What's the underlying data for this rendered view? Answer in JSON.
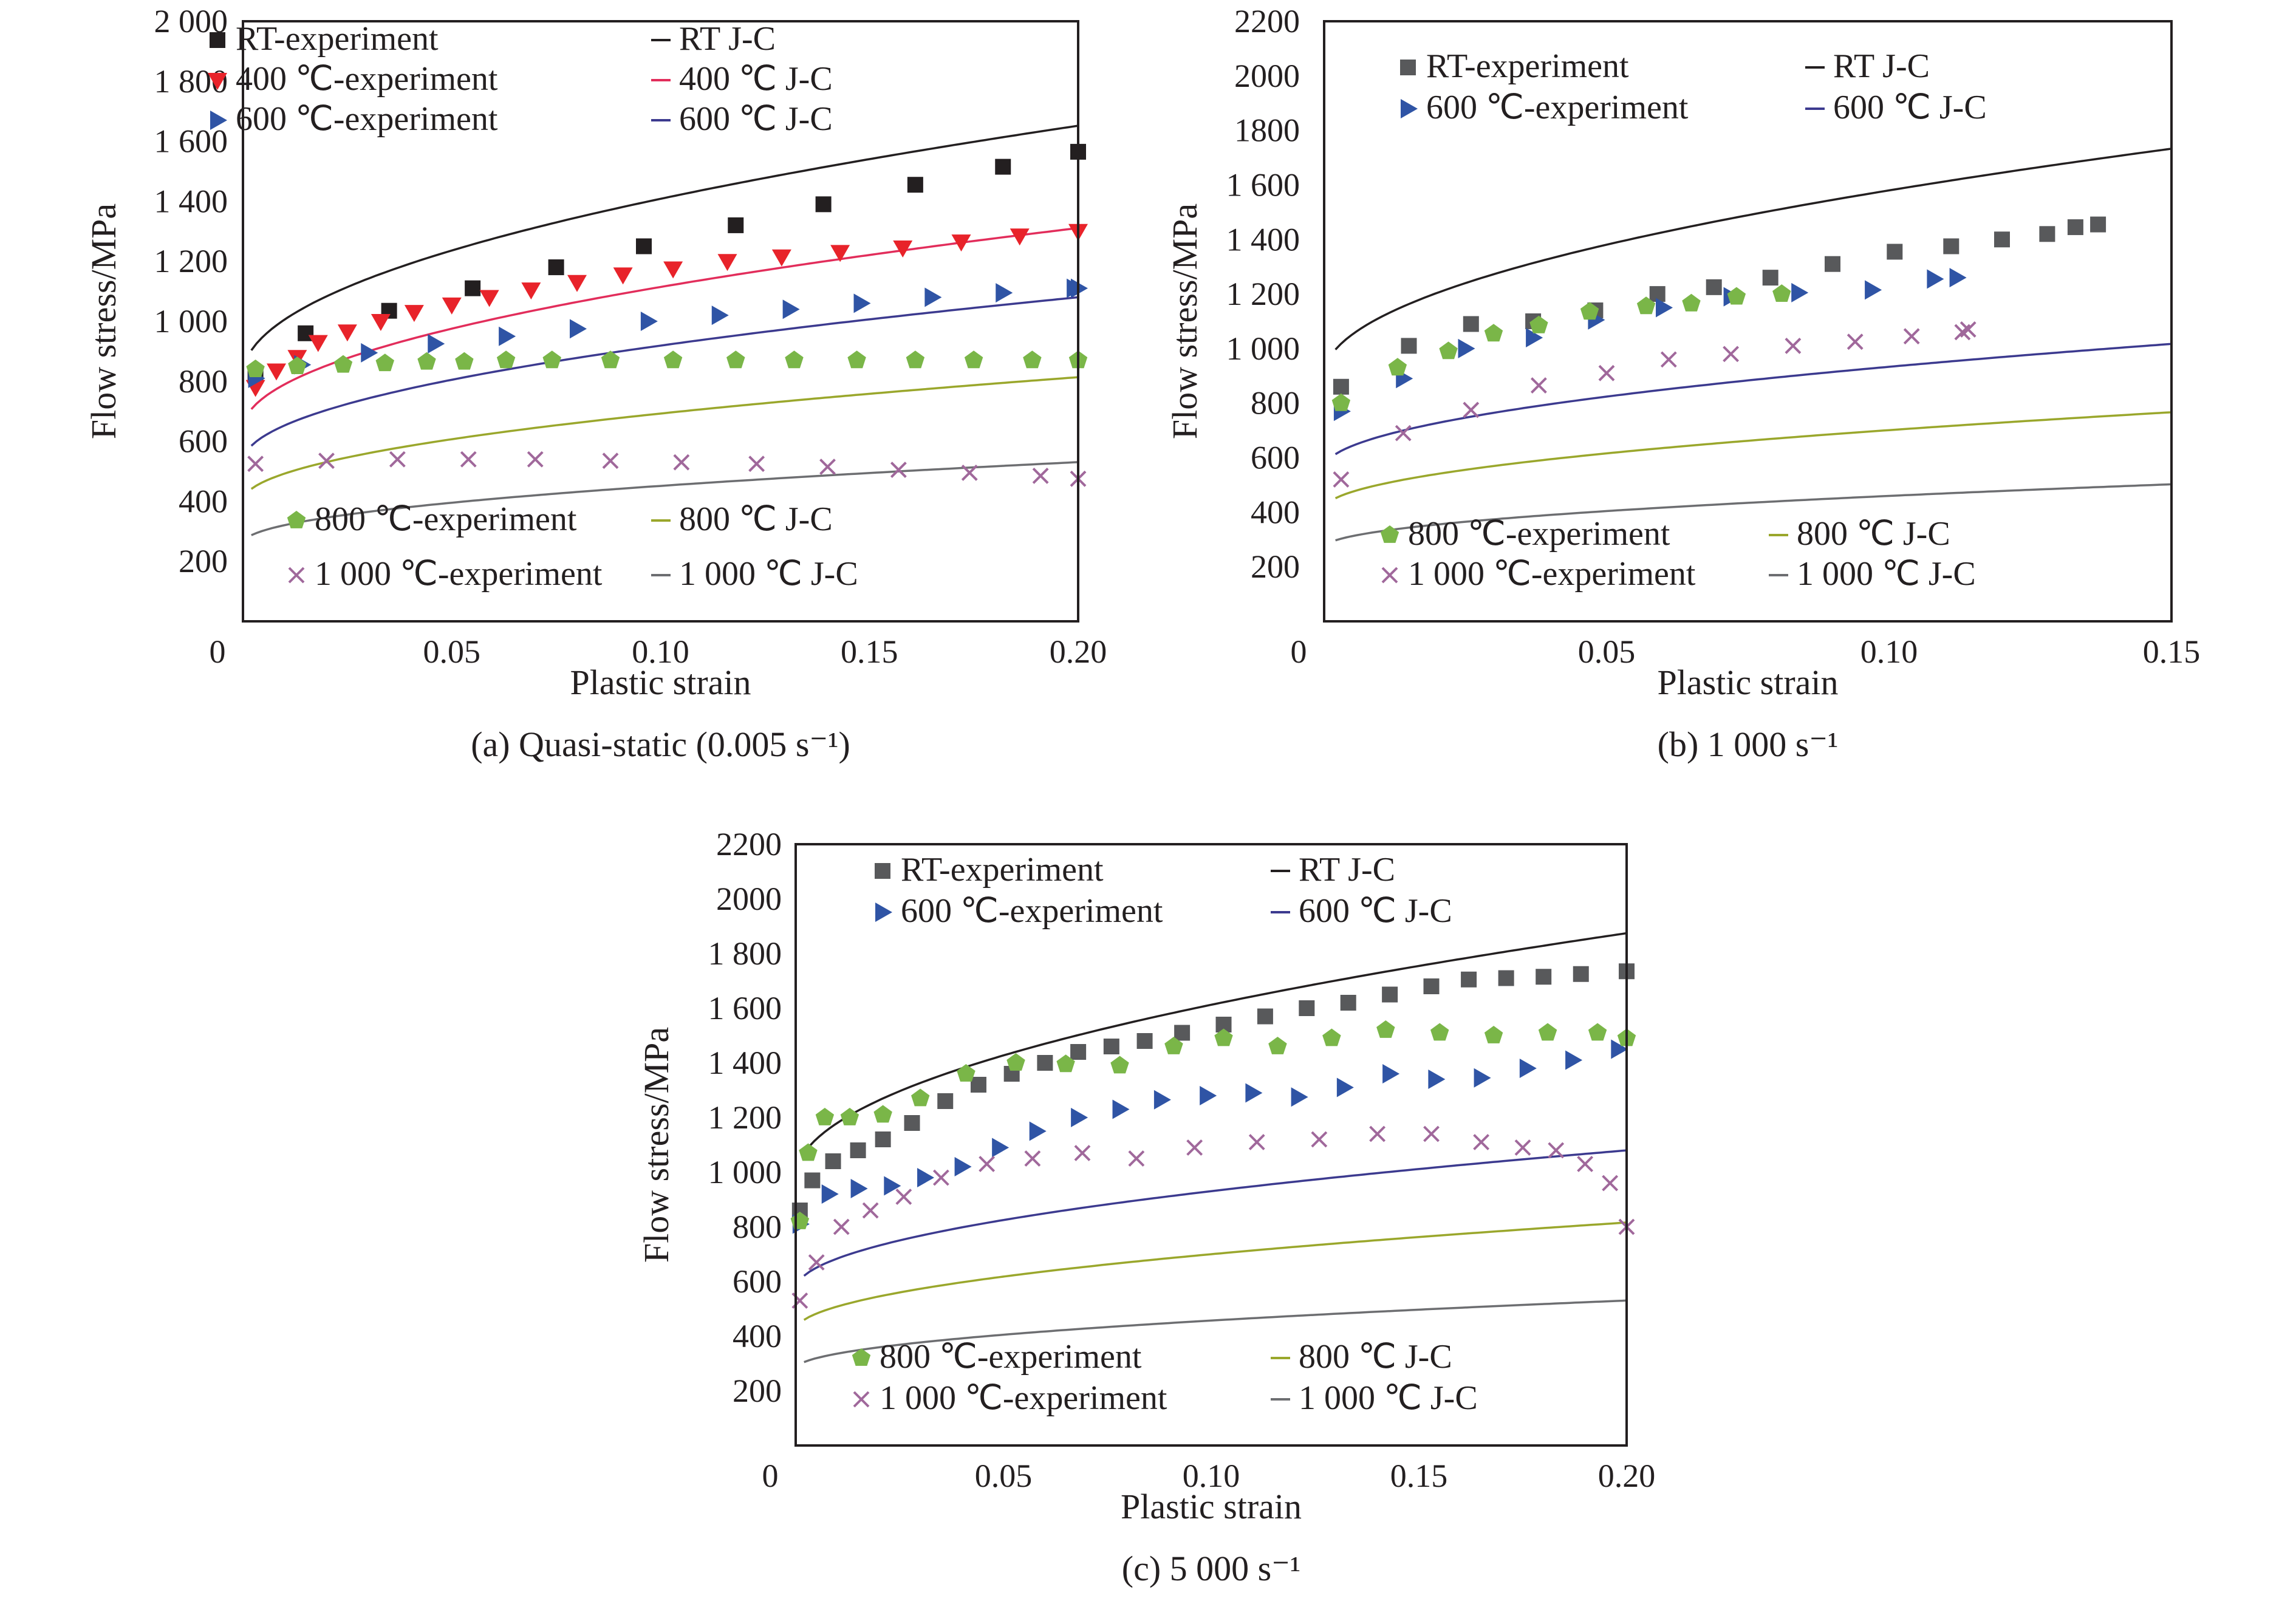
{
  "colors": {
    "rt": "#231f20",
    "c400": "#e8232a",
    "c600": "#2f54a5",
    "c800": "#7ab648",
    "c1000": "#a0689b",
    "rt_marker_b": "#58595b",
    "jc400": "#e22d5b",
    "jc600": "#3c3a8f",
    "jc800": "#9aa72c",
    "jc1000": "#6d6e71"
  },
  "chart_data": [
    {
      "type": "scatter",
      "caption": "(a) Quasi-static (0.005 s⁻¹)",
      "xlabel": "Plastic strain",
      "ylabel": "Flow stress/MPa",
      "xlim": [
        0,
        0.2
      ],
      "ylim": [
        0,
        2000
      ],
      "x_ticks": [
        "0",
        "0.05",
        "0.10",
        "0.15",
        "0.20"
      ],
      "y_ticks": [
        "2 000",
        "1 800",
        "1 600",
        "1 400",
        "1 200",
        "1 000",
        "800",
        "600",
        "400",
        "200"
      ],
      "legend_top": [
        {
          "label": "RT-experiment",
          "key": "rt_exp"
        },
        {
          "label": "RT J-C",
          "key": "rt_jc"
        },
        {
          "label": "400 ℃-experiment",
          "key": "e400"
        },
        {
          "label": "400 ℃ J-C",
          "key": "jc400"
        },
        {
          "label": "600 ℃-experiment",
          "key": "e600"
        },
        {
          "label": "600 ℃ J-C",
          "key": "jc600"
        }
      ],
      "legend_bottom": [
        {
          "label": "800 ℃-experiment",
          "key": "e800"
        },
        {
          "label": "800 ℃ J-C",
          "key": "jc800"
        },
        {
          "label": "1 000 ℃-experiment",
          "key": "e1000"
        },
        {
          "label": "1 000 ℃ J-C",
          "key": "jc1000"
        }
      ],
      "series": [
        {
          "key": "rt_exp",
          "marker": "square",
          "color": "#231f20",
          "x": [
            0.003,
            0.015,
            0.035,
            0.055,
            0.075,
            0.096,
            0.118,
            0.139,
            0.161,
            0.182,
            0.2
          ],
          "y": [
            820,
            960,
            1035,
            1110,
            1180,
            1250,
            1320,
            1390,
            1455,
            1515,
            1565
          ]
        },
        {
          "key": "e400",
          "marker": "triangle-down",
          "color": "#e8232a",
          "x": [
            0.003,
            0.008,
            0.013,
            0.018,
            0.025,
            0.033,
            0.041,
            0.05,
            0.059,
            0.069,
            0.08,
            0.091,
            0.103,
            0.116,
            0.129,
            0.143,
            0.158,
            0.172,
            0.186,
            0.2
          ],
          "y": [
            780,
            835,
            880,
            930,
            965,
            1000,
            1030,
            1055,
            1080,
            1105,
            1130,
            1155,
            1175,
            1200,
            1215,
            1230,
            1245,
            1265,
            1285,
            1300
          ]
        },
        {
          "key": "e600",
          "marker": "triangle-right",
          "color": "#2f54a5",
          "x": [
            0.003,
            0.014,
            0.03,
            0.046,
            0.063,
            0.08,
            0.097,
            0.114,
            0.131,
            0.148,
            0.165,
            0.182,
            0.199,
            0.2
          ],
          "y": [
            810,
            855,
            895,
            925,
            950,
            975,
            1000,
            1020,
            1040,
            1060,
            1080,
            1095,
            1110,
            1110
          ]
        },
        {
          "key": "e800",
          "marker": "pentagon",
          "color": "#7ab648",
          "x": [
            0.003,
            0.013,
            0.024,
            0.034,
            0.044,
            0.053,
            0.063,
            0.074,
            0.088,
            0.103,
            0.118,
            0.132,
            0.147,
            0.161,
            0.175,
            0.189,
            0.2
          ],
          "y": [
            840,
            850,
            855,
            860,
            865,
            865,
            870,
            870,
            870,
            870,
            870,
            870,
            870,
            870,
            870,
            870,
            870
          ]
        },
        {
          "key": "e1000",
          "marker": "x",
          "color": "#a0689b",
          "x": [
            0.003,
            0.02,
            0.037,
            0.054,
            0.07,
            0.088,
            0.105,
            0.123,
            0.14,
            0.157,
            0.174,
            0.191,
            0.2
          ],
          "y": [
            525,
            535,
            540,
            540,
            540,
            535,
            530,
            525,
            515,
            505,
            495,
            485,
            475
          ]
        },
        {
          "key": "rt_jc",
          "type": "jc",
          "A": 820,
          "B": 1860,
          "n": 0.5,
          "color": "#231f20"
        },
        {
          "key": "jc400",
          "type": "jc",
          "A": 640,
          "B": 1500,
          "n": 0.5,
          "color": "#e22d5b"
        },
        {
          "key": "jc600",
          "type": "jc",
          "A": 530,
          "B": 1230,
          "n": 0.5,
          "color": "#3c3a8f"
        },
        {
          "key": "jc800",
          "type": "jc",
          "A": 400,
          "B": 925,
          "n": 0.5,
          "color": "#9aa72c"
        },
        {
          "key": "jc1000",
          "type": "jc",
          "A": 260,
          "B": 605,
          "n": 0.5,
          "color": "#6d6e71"
        }
      ]
    },
    {
      "type": "scatter",
      "caption": "(b) 1 000 s⁻¹",
      "xlabel": "Plastic strain",
      "ylabel": "Flow stress/MPa",
      "xlim": [
        0,
        0.15
      ],
      "ylim": [
        0,
        2200
      ],
      "x_ticks": [
        "0",
        "0.05",
        "0.10",
        "0.15"
      ],
      "y_ticks": [
        "2200",
        "2000",
        "1800",
        "1 600",
        "1 400",
        "1 200",
        "1 000",
        "800",
        "600",
        "400",
        "200"
      ],
      "legend_top": [
        {
          "label": "RT-experiment",
          "key": "rt_exp"
        },
        {
          "label": "RT J-C",
          "key": "rt_jc"
        },
        {
          "label": "600 ℃-experiment",
          "key": "e600"
        },
        {
          "label": "600 ℃ J-C",
          "key": "jc600"
        }
      ],
      "legend_bottom": [
        {
          "label": "800 ℃-experiment",
          "key": "e800"
        },
        {
          "label": "800 ℃ J-C",
          "key": "jc800"
        },
        {
          "label": "1 000 ℃-experiment",
          "key": "e1000"
        },
        {
          "label": "1 000 ℃ J-C",
          "key": "jc1000"
        }
      ],
      "series": [
        {
          "key": "rt_exp",
          "marker": "square",
          "color": "#58595b",
          "x": [
            0.003,
            0.015,
            0.026,
            0.037,
            0.048,
            0.059,
            0.069,
            0.079,
            0.09,
            0.101,
            0.111,
            0.12,
            0.128,
            0.133,
            0.137
          ],
          "y": [
            860,
            1010,
            1090,
            1100,
            1140,
            1200,
            1225,
            1260,
            1310,
            1355,
            1375,
            1400,
            1420,
            1445,
            1455
          ]
        },
        {
          "key": "e600",
          "marker": "triangle-right",
          "color": "#2f54a5",
          "x": [
            0.003,
            0.014,
            0.025,
            0.037,
            0.048,
            0.06,
            0.072,
            0.084,
            0.097,
            0.108,
            0.112
          ],
          "y": [
            770,
            890,
            1000,
            1040,
            1105,
            1150,
            1190,
            1205,
            1215,
            1255,
            1260
          ]
        },
        {
          "key": "e800",
          "marker": "pentagon",
          "color": "#7ab648",
          "x": [
            0.003,
            0.013,
            0.022,
            0.03,
            0.038,
            0.047,
            0.057,
            0.065,
            0.073,
            0.081
          ],
          "y": [
            800,
            930,
            990,
            1055,
            1085,
            1135,
            1155,
            1165,
            1190,
            1200
          ]
        },
        {
          "key": "e1000",
          "marker": "x",
          "color": "#a0689b",
          "x": [
            0.003,
            0.014,
            0.026,
            0.038,
            0.05,
            0.061,
            0.072,
            0.083,
            0.094,
            0.104,
            0.113,
            0.114
          ],
          "y": [
            520,
            690,
            775,
            865,
            910,
            960,
            980,
            1010,
            1025,
            1045,
            1060,
            1070
          ]
        },
        {
          "key": "rt_jc",
          "type": "jc",
          "A": 900,
          "B": 2150,
          "n": 0.5,
          "color": "#231f20"
        },
        {
          "key": "jc600",
          "type": "jc",
          "A": 560,
          "B": 1180,
          "n": 0.5,
          "color": "#3c3a8f"
        },
        {
          "key": "jc800",
          "type": "jc",
          "A": 410,
          "B": 920,
          "n": 0.5,
          "color": "#9aa72c"
        },
        {
          "key": "jc1000",
          "type": "jc",
          "A": 270,
          "B": 600,
          "n": 0.5,
          "color": "#6d6e71"
        }
      ]
    },
    {
      "type": "scatter",
      "caption": "(c) 5 000 s⁻¹",
      "xlabel": "Plastic strain",
      "ylabel": "Flow stress/MPa",
      "xlim": [
        0,
        0.2
      ],
      "ylim": [
        0,
        2200
      ],
      "x_ticks": [
        "0",
        "0.05",
        "0.10",
        "0.15",
        "0.20"
      ],
      "y_ticks": [
        "2200",
        "2000",
        "1 800",
        "1 600",
        "1 400",
        "1 200",
        "1 000",
        "800",
        "600",
        "400",
        "200"
      ],
      "legend_top": [
        {
          "label": "RT-experiment",
          "key": "rt_exp"
        },
        {
          "label": "RT J-C",
          "key": "rt_jc"
        },
        {
          "label": "600 ℃-experiment",
          "key": "e600"
        },
        {
          "label": "600 ℃ J-C",
          "key": "jc600"
        }
      ],
      "legend_bottom": [
        {
          "label": "800 ℃-experiment",
          "key": "e800"
        },
        {
          "label": "800 ℃ J-C",
          "key": "jc800"
        },
        {
          "label": "1 000 ℃-experiment",
          "key": "e1000"
        },
        {
          "label": "1 000 ℃ J-C",
          "key": "jc1000"
        }
      ],
      "series": [
        {
          "key": "rt_exp",
          "marker": "square",
          "color": "#58595b",
          "x": [
            0.001,
            0.004,
            0.009,
            0.015,
            0.021,
            0.028,
            0.036,
            0.044,
            0.052,
            0.06,
            0.068,
            0.076,
            0.084,
            0.093,
            0.103,
            0.113,
            0.123,
            0.133,
            0.143,
            0.153,
            0.162,
            0.171,
            0.18,
            0.189,
            0.2
          ],
          "y": [
            860,
            970,
            1040,
            1080,
            1120,
            1180,
            1260,
            1320,
            1360,
            1400,
            1440,
            1460,
            1480,
            1510,
            1540,
            1570,
            1600,
            1620,
            1650,
            1680,
            1705,
            1710,
            1715,
            1725,
            1735
          ]
        },
        {
          "key": "e600",
          "marker": "triangle-right",
          "color": "#2f54a5",
          "x": [
            0.001,
            0.008,
            0.015,
            0.023,
            0.031,
            0.04,
            0.049,
            0.058,
            0.068,
            0.078,
            0.088,
            0.099,
            0.11,
            0.121,
            0.132,
            0.143,
            0.154,
            0.165,
            0.176,
            0.187,
            0.198
          ],
          "y": [
            810,
            920,
            940,
            950,
            980,
            1020,
            1090,
            1150,
            1200,
            1230,
            1265,
            1280,
            1290,
            1275,
            1310,
            1360,
            1340,
            1345,
            1380,
            1410,
            1450
          ]
        },
        {
          "key": "e800",
          "marker": "pentagon",
          "color": "#7ab648",
          "x": [
            0.001,
            0.003,
            0.007,
            0.013,
            0.021,
            0.03,
            0.041,
            0.053,
            0.065,
            0.078,
            0.091,
            0.103,
            0.116,
            0.129,
            0.142,
            0.155,
            0.168,
            0.181,
            0.193,
            0.2
          ],
          "y": [
            820,
            1070,
            1200,
            1200,
            1210,
            1270,
            1360,
            1400,
            1395,
            1390,
            1460,
            1490,
            1460,
            1490,
            1520,
            1510,
            1500,
            1510,
            1510,
            1490
          ]
        },
        {
          "key": "e1000",
          "marker": "x",
          "color": "#a0689b",
          "x": [
            0.001,
            0.005,
            0.011,
            0.018,
            0.026,
            0.035,
            0.046,
            0.057,
            0.069,
            0.082,
            0.096,
            0.111,
            0.126,
            0.14,
            0.153,
            0.165,
            0.175,
            0.183,
            0.19,
            0.196,
            0.2
          ],
          "y": [
            530,
            670,
            800,
            860,
            910,
            980,
            1030,
            1050,
            1070,
            1050,
            1090,
            1110,
            1120,
            1140,
            1140,
            1110,
            1090,
            1080,
            1030,
            960,
            800
          ]
        },
        {
          "key": "rt_jc",
          "type": "jc",
          "A": 980,
          "B": 2000,
          "n": 0.5,
          "color": "#231f20"
        },
        {
          "key": "jc600",
          "type": "jc",
          "A": 570,
          "B": 1140,
          "n": 0.5,
          "color": "#3c3a8f"
        },
        {
          "key": "jc800",
          "type": "jc",
          "A": 420,
          "B": 885,
          "n": 0.5,
          "color": "#9aa72c"
        },
        {
          "key": "jc1000",
          "type": "jc",
          "A": 280,
          "B": 560,
          "n": 0.5,
          "color": "#6d6e71"
        }
      ]
    }
  ]
}
